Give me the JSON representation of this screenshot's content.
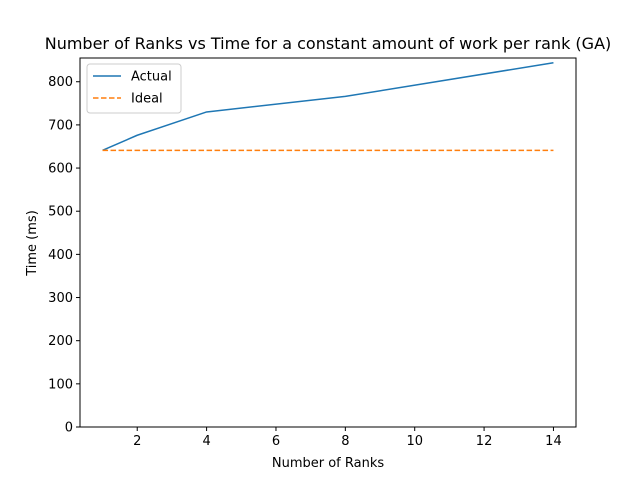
{
  "chart_data": {
    "type": "line",
    "title": "Number of Ranks vs Time for a constant amount of work per rank (GA)",
    "xlabel": "Number of Ranks",
    "ylabel": "Time (ms)",
    "xlim": [
      0.35,
      14.65
    ],
    "ylim": [
      0,
      855
    ],
    "xticks": [
      2,
      4,
      6,
      8,
      10,
      12,
      14
    ],
    "yticks": [
      0,
      100,
      200,
      300,
      400,
      500,
      600,
      700,
      800
    ],
    "grid": false,
    "legend_position": "top-left",
    "series": [
      {
        "name": "Actual",
        "style": "solid",
        "color": "#1f77b4",
        "x": [
          1,
          2,
          4,
          8,
          14
        ],
        "y": [
          641,
          676,
          730,
          766,
          844
        ]
      },
      {
        "name": "Ideal",
        "style": "dashed",
        "color": "#ff7f0e",
        "x": [
          1,
          2,
          4,
          8,
          14
        ],
        "y": [
          641,
          641,
          641,
          641,
          641
        ]
      }
    ]
  }
}
